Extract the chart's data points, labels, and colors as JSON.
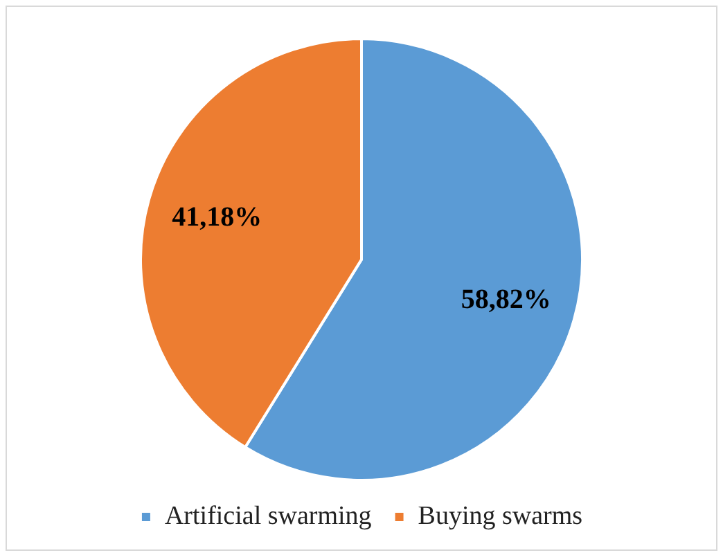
{
  "chart_data": {
    "type": "pie",
    "categories": [
      "Artificial swarming",
      "Buying swarms"
    ],
    "values": [
      58.82,
      41.18
    ],
    "colors": [
      "#5b9bd5",
      "#ed7d31"
    ],
    "value_labels": [
      "58,82%",
      "41,18%"
    ],
    "legend": "bottom"
  }
}
